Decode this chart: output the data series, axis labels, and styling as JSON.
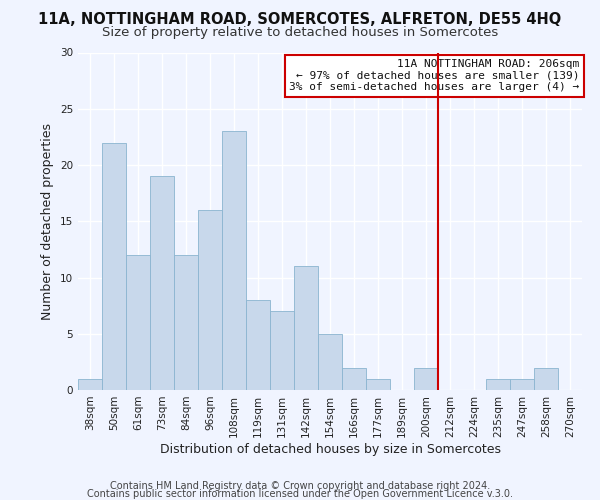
{
  "title": "11A, NOTTINGHAM ROAD, SOMERCOTES, ALFRETON, DE55 4HQ",
  "subtitle": "Size of property relative to detached houses in Somercotes",
  "xlabel": "Distribution of detached houses by size in Somercotes",
  "ylabel": "Number of detached properties",
  "bar_color": "#c8d8eb",
  "bar_edge_color": "#8ab4d0",
  "categories": [
    "38sqm",
    "50sqm",
    "61sqm",
    "73sqm",
    "84sqm",
    "96sqm",
    "108sqm",
    "119sqm",
    "131sqm",
    "142sqm",
    "154sqm",
    "166sqm",
    "177sqm",
    "189sqm",
    "200sqm",
    "212sqm",
    "224sqm",
    "235sqm",
    "247sqm",
    "258sqm",
    "270sqm"
  ],
  "values": [
    1,
    22,
    12,
    19,
    12,
    16,
    23,
    8,
    7,
    11,
    5,
    2,
    1,
    0,
    2,
    0,
    0,
    1,
    1,
    2,
    0
  ],
  "ylim": [
    0,
    30
  ],
  "yticks": [
    0,
    5,
    10,
    15,
    20,
    25,
    30
  ],
  "vline_color": "#cc0000",
  "annotation_title": "11A NOTTINGHAM ROAD: 206sqm",
  "annotation_line1": "← 97% of detached houses are smaller (139)",
  "annotation_line2": "3% of semi-detached houses are larger (4) →",
  "footer1": "Contains HM Land Registry data © Crown copyright and database right 2024.",
  "footer2": "Contains public sector information licensed under the Open Government Licence v.3.0.",
  "background_color": "#f0f4ff",
  "grid_color": "#ffffff",
  "title_fontsize": 10.5,
  "subtitle_fontsize": 9.5,
  "axis_label_fontsize": 9,
  "tick_fontsize": 7.5,
  "annotation_fontsize": 8,
  "footer_fontsize": 7
}
